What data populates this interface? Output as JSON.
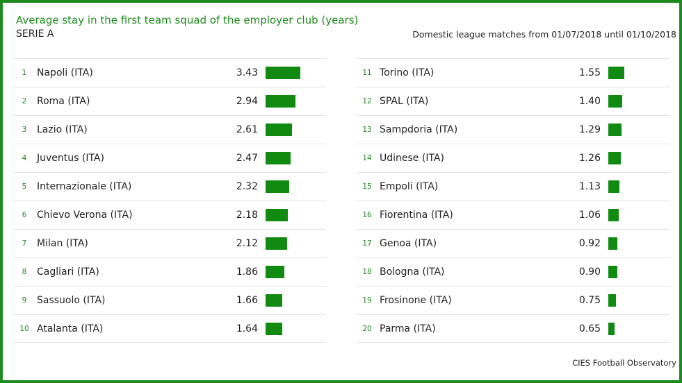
{
  "header": {
    "title": "Average stay in the first team squad of the employer club (years)",
    "league": "SERIE A",
    "period": "Domestic league matches from 01/07/2018 until 01/10/2018"
  },
  "footer": {
    "source": "CIES Football Observatory"
  },
  "colors": {
    "accent": "#1e8a1e",
    "bar": "#118a11",
    "frame": "#1e8a1e"
  },
  "chart_data": {
    "type": "bar",
    "orientation": "horizontal",
    "title": "Average stay in the first team squad of the employer club (years)",
    "subtitle": "SERIE A",
    "value_max": 3.43,
    "categories": [
      "Napoli (ITA)",
      "Roma (ITA)",
      "Lazio (ITA)",
      "Juventus (ITA)",
      "Internazionale (ITA)",
      "Chievo Verona (ITA)",
      "Milan (ITA)",
      "Cagliari (ITA)",
      "Sassuolo (ITA)",
      "Atalanta (ITA)",
      "Torino (ITA)",
      "SPAL (ITA)",
      "Sampdoria (ITA)",
      "Udinese (ITA)",
      "Empoli (ITA)",
      "Fiorentina (ITA)",
      "Genoa (ITA)",
      "Bologna (ITA)",
      "Frosinone (ITA)",
      "Parma (ITA)"
    ],
    "ranks": [
      "1",
      "2",
      "3",
      "4",
      "5",
      "6",
      "7",
      "8",
      "9",
      "10",
      "11",
      "12",
      "13",
      "14",
      "15",
      "16",
      "17",
      "18",
      "19",
      "20"
    ],
    "values": [
      3.43,
      2.94,
      2.61,
      2.47,
      2.32,
      2.18,
      2.12,
      1.86,
      1.66,
      1.64,
      1.55,
      1.4,
      1.29,
      1.26,
      1.13,
      1.06,
      0.92,
      0.9,
      0.75,
      0.65
    ],
    "value_labels": [
      "3.43",
      "2.94",
      "2.61",
      "2.47",
      "2.32",
      "2.18",
      "2.12",
      "1.86",
      "1.66",
      "1.64",
      "1.55",
      "1.40",
      "1.29",
      "1.26",
      "1.13",
      "1.06",
      "0.92",
      "0.90",
      "0.75",
      "0.65"
    ]
  }
}
